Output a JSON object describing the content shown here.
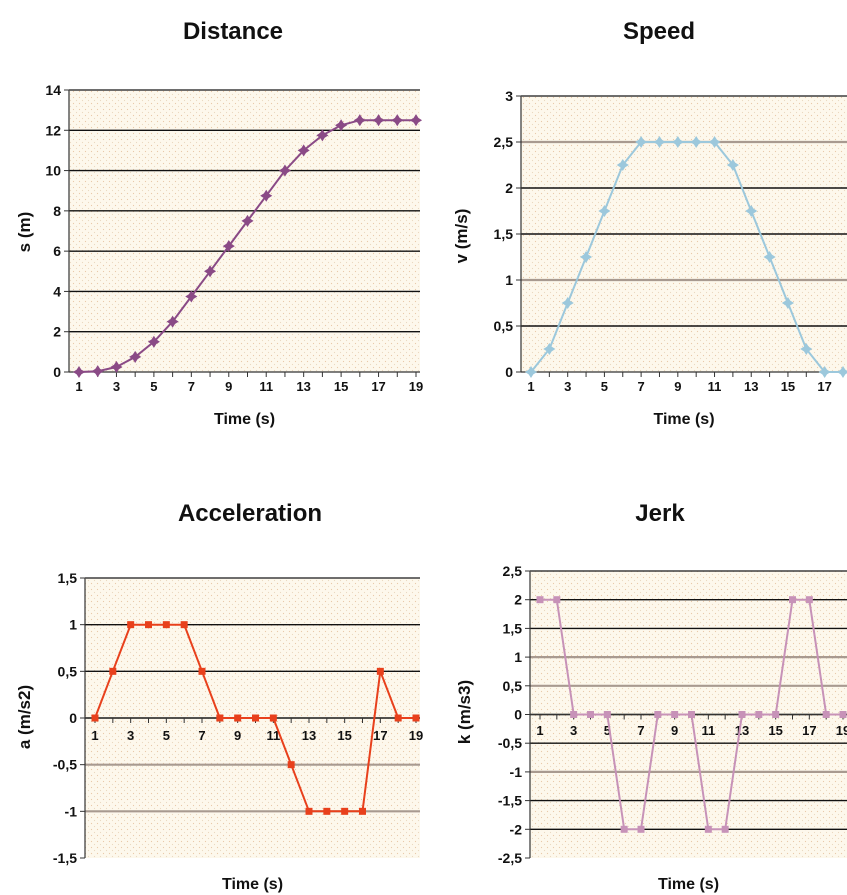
{
  "chart_data": [
    {
      "type": "line",
      "title": "Distance",
      "xlabel": "Time (s)",
      "ylabel": "s (m)",
      "x": [
        1,
        2,
        3,
        4,
        5,
        6,
        7,
        8,
        9,
        10,
        11,
        12,
        13,
        14,
        15,
        16,
        17,
        18,
        19
      ],
      "x_tick_labels": [
        "1",
        "3",
        "5",
        "7",
        "9",
        "11",
        "13",
        "15",
        "17",
        "19"
      ],
      "ylim": [
        0,
        14
      ],
      "y_ticks": [
        0,
        2,
        4,
        6,
        8,
        10,
        12,
        14
      ],
      "y_tick_labels": [
        "0",
        "2",
        "4",
        "6",
        "8",
        "10",
        "12",
        "14"
      ],
      "series": [
        {
          "values": [
            0,
            0.04,
            0.25,
            0.75,
            1.5,
            2.5,
            3.75,
            5.0,
            6.25,
            7.5,
            8.75,
            10.0,
            11.0,
            11.75,
            12.25,
            12.5,
            12.5,
            12.5,
            12.5
          ],
          "color": "#8a4a86",
          "marker": "star"
        }
      ],
      "grid": true,
      "plot_background": "#fdf8ec"
    },
    {
      "type": "line",
      "title": "Speed",
      "xlabel": "Time (s)",
      "ylabel": "v (m/s)",
      "x": [
        1,
        2,
        3,
        4,
        5,
        6,
        7,
        8,
        9,
        10,
        11,
        12,
        13,
        14,
        15,
        16,
        17,
        18
      ],
      "x_tick_labels": [
        "1",
        "3",
        "5",
        "7",
        "9",
        "11",
        "13",
        "15",
        "17"
      ],
      "ylim": [
        0,
        3
      ],
      "y_ticks": [
        0,
        0.5,
        1,
        1.5,
        2,
        2.5,
        3
      ],
      "y_tick_labels": [
        "0",
        "0,5",
        "1",
        "1,5",
        "2",
        "2,5",
        "3"
      ],
      "series": [
        {
          "values": [
            0,
            0.25,
            0.75,
            1.25,
            1.75,
            2.25,
            2.5,
            2.5,
            2.5,
            2.5,
            2.5,
            2.25,
            1.75,
            1.25,
            0.75,
            0.25,
            0,
            0
          ],
          "color": "#9cc8dc",
          "marker": "star"
        }
      ],
      "grid": true,
      "plot_background": "#fdf8ec"
    },
    {
      "type": "line",
      "title": "Acceleration",
      "xlabel": "Time (s)",
      "ylabel": "a (m/s2)",
      "x": [
        1,
        2,
        3,
        4,
        5,
        6,
        7,
        8,
        9,
        10,
        11,
        12,
        13,
        14,
        15,
        16,
        17,
        18,
        19
      ],
      "x_tick_labels": [
        "1",
        "3",
        "5",
        "7",
        "9",
        "11",
        "13",
        "15",
        "17",
        "19"
      ],
      "ylim": [
        -1.5,
        1.5
      ],
      "y_ticks": [
        -1.5,
        -1,
        -0.5,
        0,
        0.5,
        1,
        1.5
      ],
      "y_tick_labels": [
        "-1,5",
        "-1",
        "-0,5",
        "0",
        "0,5",
        "1",
        "1,5"
      ],
      "series": [
        {
          "values": [
            0,
            0.5,
            1,
            1,
            1,
            1,
            0.5,
            0,
            0,
            0,
            0,
            -0.5,
            -1,
            -1,
            -1,
            -1,
            0.5,
            0,
            0
          ],
          "color": "#e8401c",
          "marker": "square"
        }
      ],
      "grid": true,
      "plot_background": "#fdf8ec"
    },
    {
      "type": "line",
      "title": "Jerk",
      "xlabel": "Time (s)",
      "ylabel": "k (m/s3)",
      "x": [
        1,
        2,
        3,
        4,
        5,
        6,
        7,
        8,
        9,
        10,
        11,
        12,
        13,
        14,
        15,
        16,
        17,
        18,
        19
      ],
      "x_tick_labels": [
        "1",
        "3",
        "5",
        "7",
        "9",
        "11",
        "13",
        "15",
        "17",
        "19"
      ],
      "ylim": [
        -2.5,
        2.5
      ],
      "y_ticks": [
        -2.5,
        -2,
        -1.5,
        -1,
        -0.5,
        0,
        0.5,
        1,
        1.5,
        2,
        2.5
      ],
      "y_tick_labels": [
        "-2,5",
        "-2",
        "-1,5",
        "-1",
        "-0,5",
        "0",
        "0,5",
        "1",
        "1,5",
        "2",
        "2,5"
      ],
      "series": [
        {
          "values": [
            2,
            2,
            0,
            0,
            0,
            -2,
            -2,
            0,
            0,
            0,
            -2,
            -2,
            0,
            0,
            0,
            2,
            2,
            0,
            0
          ],
          "color": "#c792b8",
          "marker": "square"
        }
      ],
      "grid": true,
      "plot_background": "#fdf8ec"
    }
  ]
}
